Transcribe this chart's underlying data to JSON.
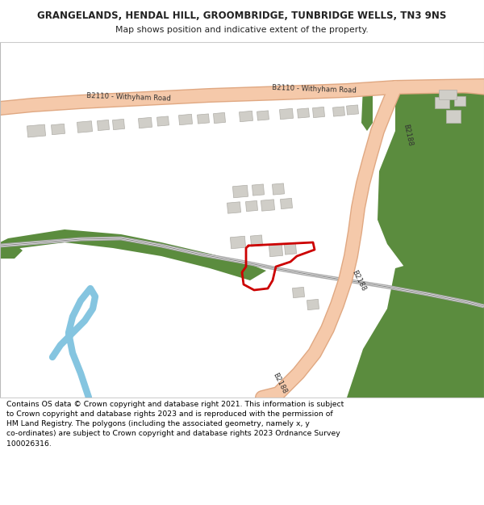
{
  "title_line1": "GRANGELANDS, HENDAL HILL, GROOMBRIDGE, TUNBRIDGE WELLS, TN3 9NS",
  "title_line2": "Map shows position and indicative extent of the property.",
  "footer_text": "Contains OS data © Crown copyright and database right 2021. This information is subject\nto Crown copyright and database rights 2023 and is reproduced with the permission of\nHM Land Registry. The polygons (including the associated geometry, namely x, y\nco-ordinates) are subject to Crown copyright and database rights 2023 Ordnance Survey\n100026316.",
  "map_bg": "#f7f4f0",
  "road_fill": "#f5c9aa",
  "road_edge": "#e0a882",
  "green_fill": "#5b8c3e",
  "blue_fill": "#85c5e0",
  "rail_gray": "#888888",
  "bld_fill": "#d0cec8",
  "bld_edge": "#b0aea8",
  "red_line": "#cc0000",
  "text_dark": "#222222",
  "title_fs": 8.5,
  "sub_fs": 7.8,
  "footer_fs": 6.7,
  "road_lw": 11,
  "road_edge_lw": 13
}
